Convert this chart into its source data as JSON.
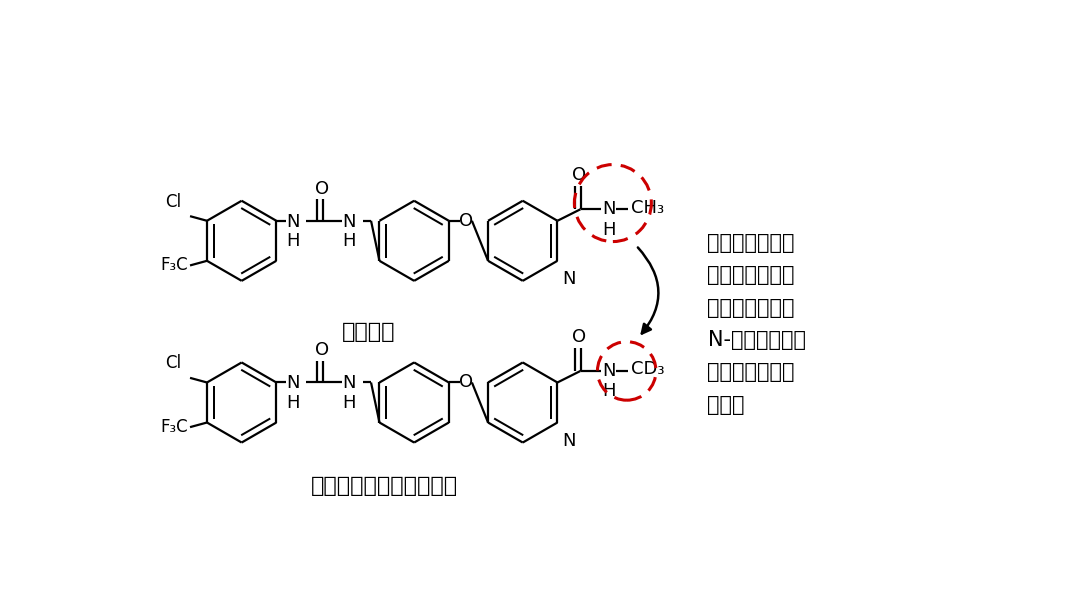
{
  "bg_color": "#ffffff",
  "title_sorafenib": "索拉菲尼",
  "title_donafenib": "氘代索拉菲尼：多纳非尼",
  "annotation_line1": "氘代化取代位点",
  "annotation_line2": "涉及药物的：氘",
  "annotation_line3": "代甲基羟基化、",
  "annotation_line4": "N-去甲基、酰胺",
  "annotation_line5": "键水解、葡萄糖",
  "annotation_line6": "醛酸化",
  "dashed_circle_color": "#cc0000",
  "arrow_color": "#000000",
  "mol_color": "#000000",
  "lw": 1.6,
  "ring_r": 0.52,
  "fs_label": 13,
  "fs_title": 16,
  "fs_annot": 15
}
